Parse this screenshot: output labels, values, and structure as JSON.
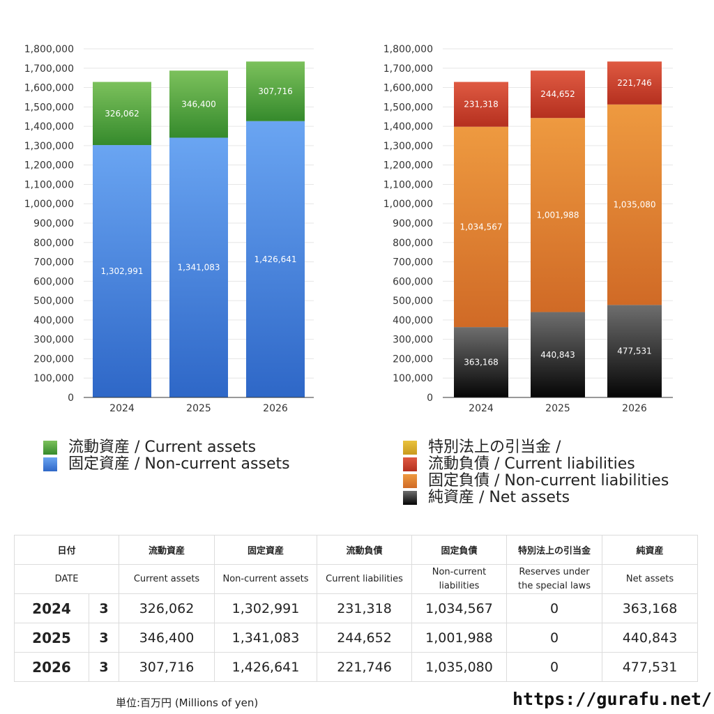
{
  "chart_data": [
    {
      "type": "bar",
      "stacked": true,
      "categories": [
        "2024",
        "2025",
        "2026"
      ],
      "ylim": [
        0,
        1800000
      ],
      "ytick_step": 100000,
      "yticks": [
        "0",
        "100,000",
        "200,000",
        "300,000",
        "400,000",
        "500,000",
        "600,000",
        "700,000",
        "800,000",
        "900,000",
        "1,000,000",
        "1,100,000",
        "1,200,000",
        "1,300,000",
        "1,400,000",
        "1,500,000",
        "1,600,000",
        "1,700,000",
        "1,800,000"
      ],
      "grid": true,
      "series": [
        {
          "name": "固定資産 / Non-current assets",
          "values": [
            1302991,
            1341083,
            1426641
          ],
          "labels": [
            "1,302,991",
            "1,341,083",
            "1,426,641"
          ],
          "color_top": "#6aa5f2",
          "color_bottom": "#2e67c7"
        },
        {
          "name": "流動資産 / Current assets",
          "values": [
            326062,
            346400,
            307716
          ],
          "labels": [
            "326,062",
            "346,400",
            "307,716"
          ],
          "color_top": "#7cc15c",
          "color_bottom": "#358a2c"
        }
      ]
    },
    {
      "type": "bar",
      "stacked": true,
      "categories": [
        "2024",
        "2025",
        "2026"
      ],
      "ylim": [
        0,
        1800000
      ],
      "ytick_step": 100000,
      "yticks": [
        "0",
        "100,000",
        "200,000",
        "300,000",
        "400,000",
        "500,000",
        "600,000",
        "700,000",
        "800,000",
        "900,000",
        "1,000,000",
        "1,100,000",
        "1,200,000",
        "1,300,000",
        "1,400,000",
        "1,500,000",
        "1,600,000",
        "1,700,000",
        "1,800,000"
      ],
      "grid": true,
      "series": [
        {
          "name": "純資産 / Net assets",
          "values": [
            363168,
            440843,
            477531
          ],
          "labels": [
            "363,168",
            "440,843",
            "477,531"
          ],
          "color_top": "#6e6e6e",
          "color_bottom": "#050505"
        },
        {
          "name": "固定負債 / Non-current liabilities",
          "values": [
            1034567,
            1001988,
            1035080
          ],
          "labels": [
            "1,034,567",
            "1,001,988",
            "1,035,080"
          ],
          "color_top": "#ee9a40",
          "color_bottom": "#d06a26"
        },
        {
          "name": "流動負債 / Current liabilities",
          "values": [
            231318,
            244652,
            221746
          ],
          "labels": [
            "231,318",
            "244,652",
            "221,746"
          ],
          "color_top": "#df5a42",
          "color_bottom": "#b5301f"
        },
        {
          "name": "特別法上の引当金 /",
          "values": [
            0,
            0,
            0
          ],
          "labels": [
            "",
            "",
            ""
          ],
          "color_top": "#e9c23d",
          "color_bottom": "#c99a1e"
        }
      ]
    }
  ],
  "legend_left": [
    {
      "label": "流動資産 / Current assets",
      "color_top": "#7cc15c",
      "color_bottom": "#358a2c"
    },
    {
      "label": "固定資産 / Non-current assets",
      "color_top": "#6aa5f2",
      "color_bottom": "#2e67c7"
    }
  ],
  "legend_right": [
    {
      "label": "特別法上の引当金 /",
      "color_top": "#e9c23d",
      "color_bottom": "#c99a1e"
    },
    {
      "label": "流動負債 / Current liabilities",
      "color_top": "#df5a42",
      "color_bottom": "#b5301f"
    },
    {
      "label": "固定負債 / Non-current liabilities",
      "color_top": "#ee9a40",
      "color_bottom": "#d06a26"
    },
    {
      "label": "純資産 / Net assets",
      "color_top": "#6e6e6e",
      "color_bottom": "#050505"
    }
  ],
  "table": {
    "headers_jp": [
      "日付",
      "流動資産",
      "固定資産",
      "流動負債",
      "固定負債",
      "特別法上の引当金",
      "純資産"
    ],
    "headers_en": [
      "DATE",
      "Current assets",
      "Non-current assets",
      "Current liabilities",
      "Non-current liabilities",
      "Reserves under the special laws",
      "Net assets"
    ],
    "rows": [
      {
        "year": "2024",
        "month": "3",
        "current_assets": "326,062",
        "noncurrent_assets": "1,302,991",
        "current_liabilities": "231,318",
        "noncurrent_liabilities": "1,034,567",
        "reserves": "0",
        "net_assets": "363,168"
      },
      {
        "year": "2025",
        "month": "3",
        "current_assets": "346,400",
        "noncurrent_assets": "1,341,083",
        "current_liabilities": "244,652",
        "noncurrent_liabilities": "1,001,988",
        "reserves": "0",
        "net_assets": "440,843"
      },
      {
        "year": "2026",
        "month": "3",
        "current_assets": "307,716",
        "noncurrent_assets": "1,426,641",
        "current_liabilities": "221,746",
        "noncurrent_liabilities": "1,035,080",
        "reserves": "0",
        "net_assets": "477,531"
      }
    ]
  },
  "footer": {
    "unit": "単位:百万円 (Millions of yen)",
    "site": "https://gurafu.net/"
  }
}
